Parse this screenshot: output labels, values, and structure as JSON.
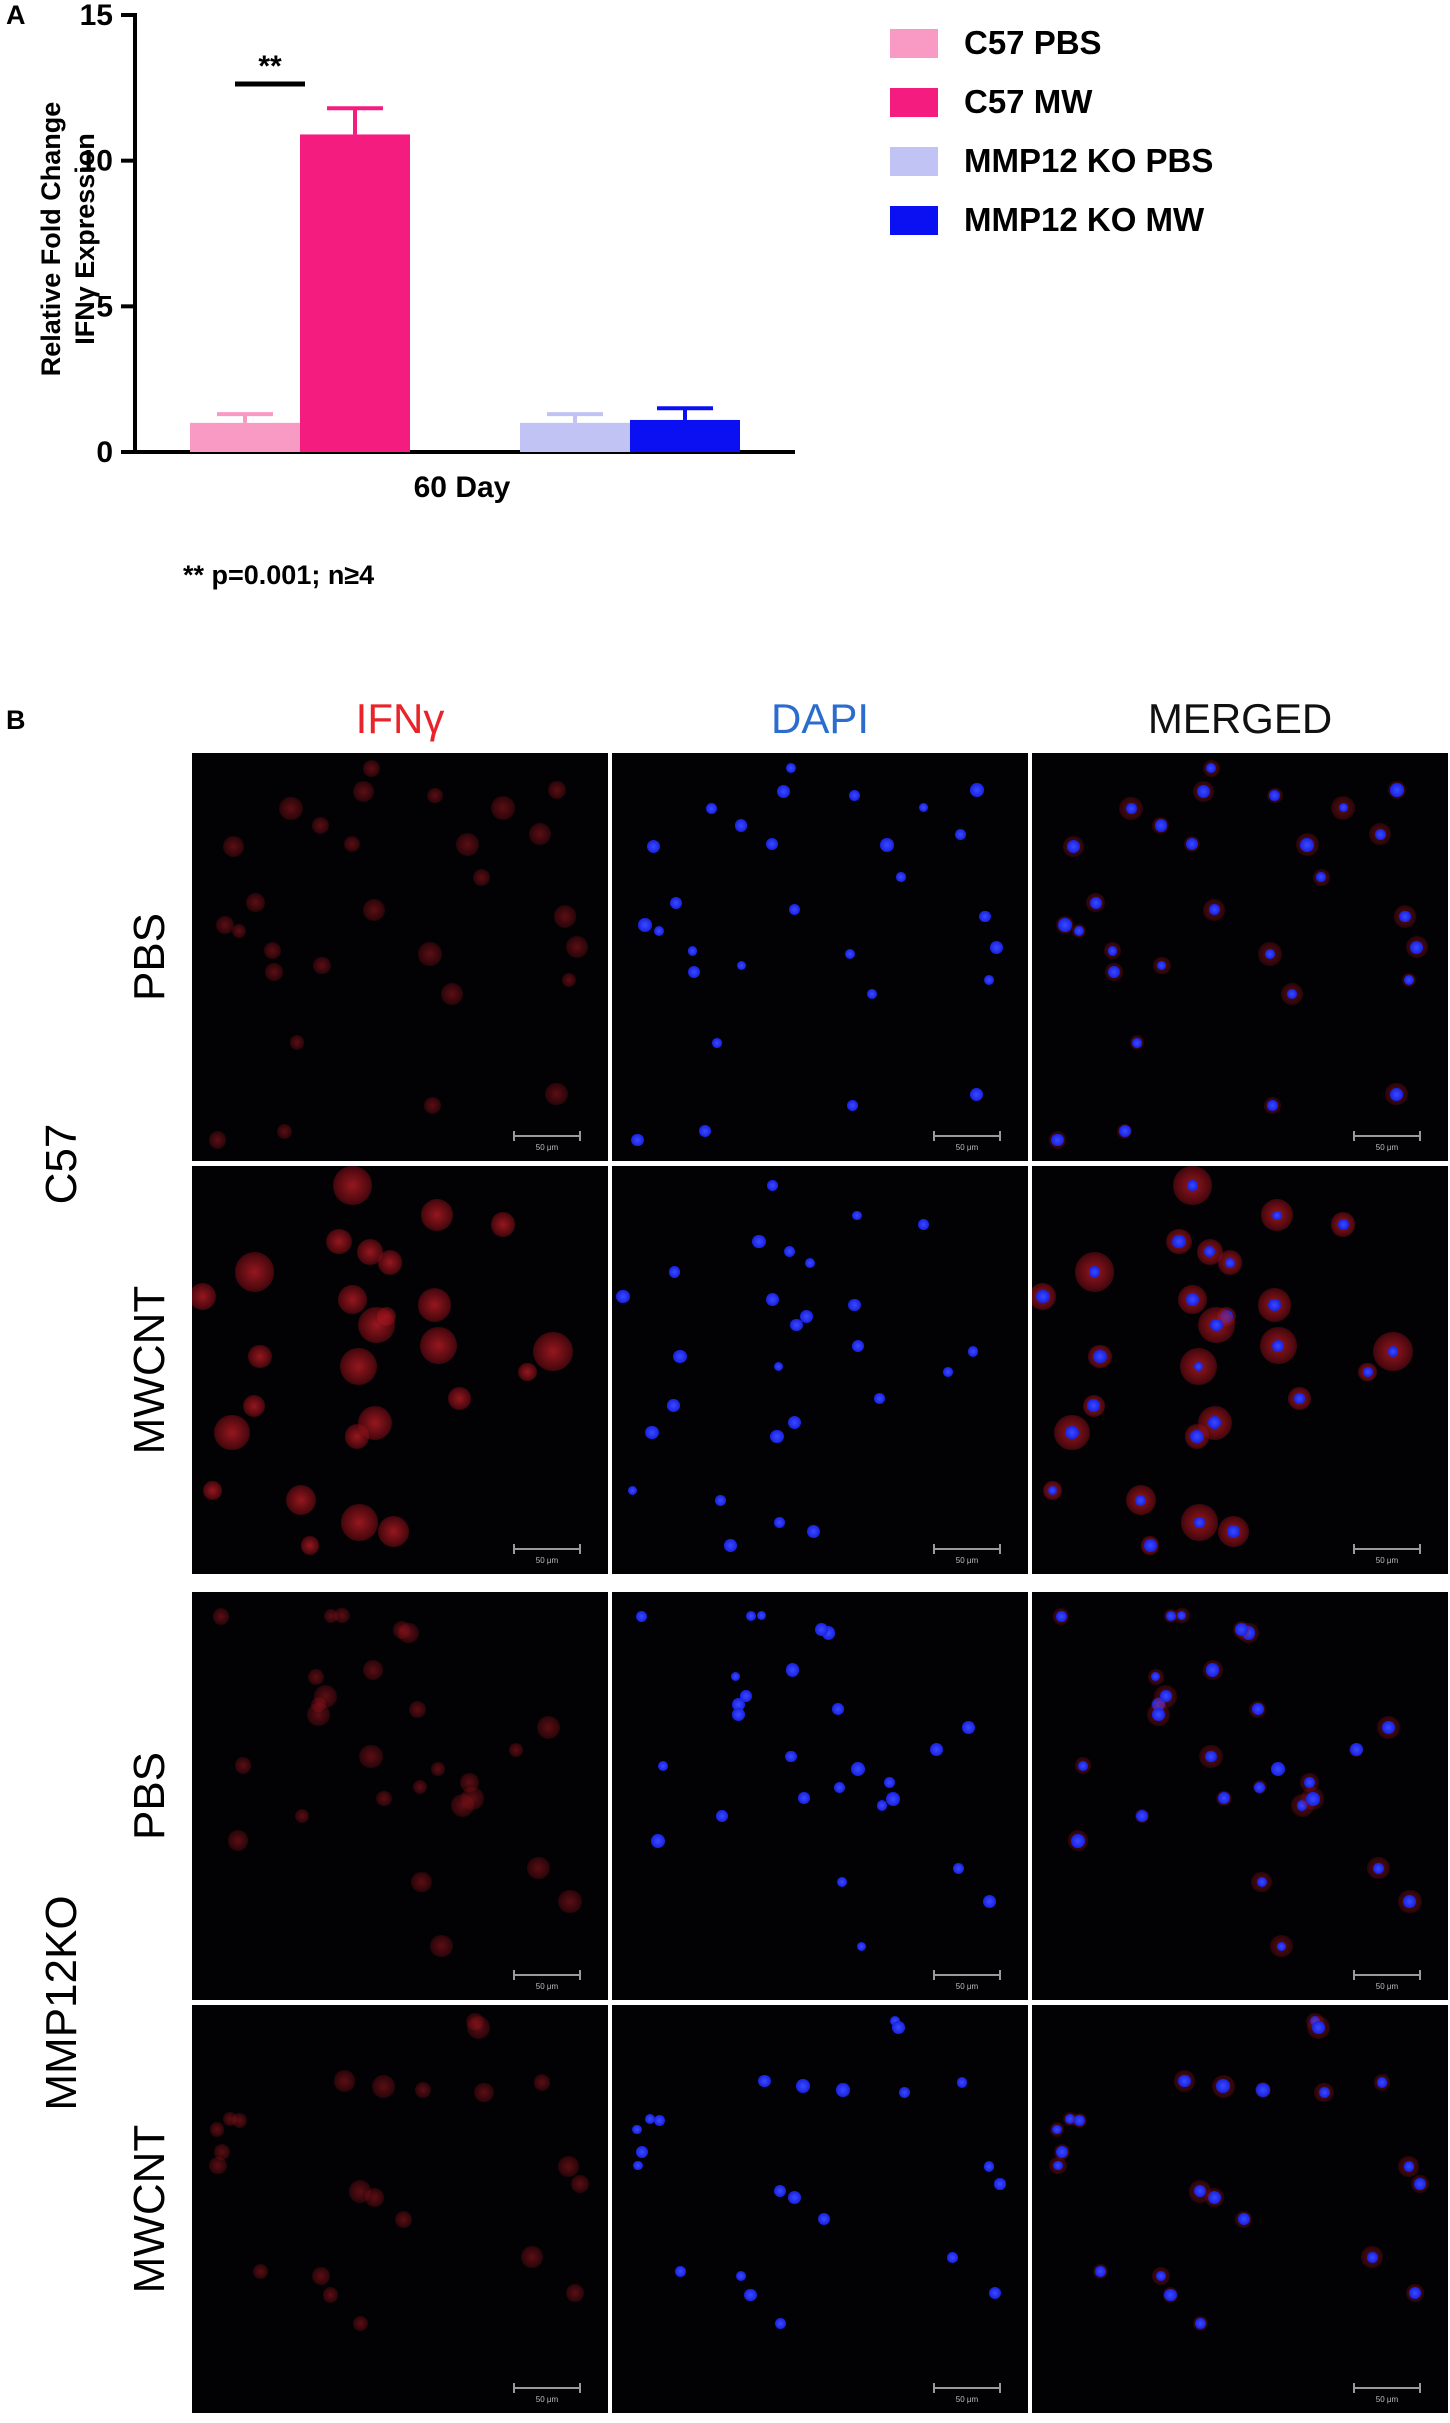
{
  "panel_a_label": "A",
  "panel_b_label": "B",
  "chart_data": {
    "type": "bar",
    "categories": [
      "60 Day"
    ],
    "series": [
      {
        "name": "C57 PBS",
        "values": [
          1.0
        ],
        "error": [
          0.3
        ],
        "color": "#f99ac4"
      },
      {
        "name": "C57 MW",
        "values": [
          10.9
        ],
        "error": [
          0.9
        ],
        "color": "#f51c7f"
      },
      {
        "name": "MMP12 KO PBS",
        "values": [
          1.0
        ],
        "error": [
          0.3
        ],
        "color": "#c0c3f4"
      },
      {
        "name": "MMP12 KO MW",
        "values": [
          1.1
        ],
        "error": [
          0.4
        ],
        "color": "#0b10f2"
      }
    ],
    "ylabel_line1": "Relative Fold Change",
    "ylabel_line2": "IFNγ Expression",
    "xlabel": "",
    "ylim": [
      0,
      15
    ],
    "yticks": [
      "0",
      "5",
      "10",
      "15"
    ],
    "significance": {
      "label": "**",
      "between": [
        "C57 PBS",
        "C57 MW"
      ]
    },
    "legend_position": "top-right",
    "footnote": "** p=0.001; n≥4"
  },
  "microscopy": {
    "columns": [
      {
        "label": "IFNγ",
        "color": "#e8232a"
      },
      {
        "label": "DAPI",
        "color": "#2a6ccf"
      },
      {
        "label": "MERGED",
        "color": "#111111"
      }
    ],
    "groups": [
      {
        "label": "C57",
        "rows": [
          "PBS",
          "MWCNT"
        ]
      },
      {
        "label": "MMP12KO",
        "rows": [
          "PBS",
          "MWCNT"
        ]
      }
    ],
    "scale_label": "50 μm"
  }
}
